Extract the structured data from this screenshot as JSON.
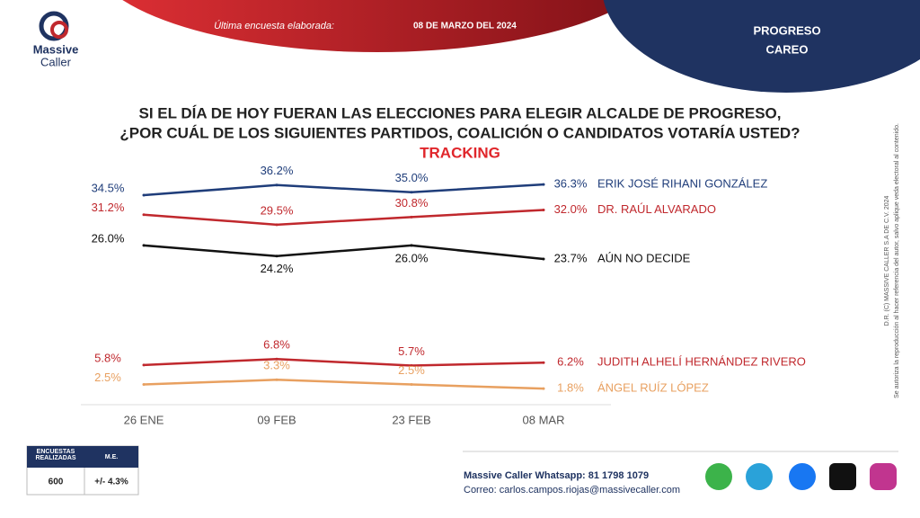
{
  "header": {
    "survey_label": "Última encuesta elaborada:",
    "survey_date": "08 DE MARZO DEL 2024",
    "place": "PROGRESO",
    "section": "CAREO"
  },
  "logo": {
    "line1": "Massive",
    "line2": "Caller"
  },
  "chart_data": {
    "type": "line",
    "title": [
      "SI EL DÍA DE HOY FUERAN LAS ELECCIONES PARA ELEGIR ALCALDE DE PROGRESO,",
      "¿POR CUÁL DE LOS SIGUIENTES PARTIDOS, COALICIÓN O CANDIDATOS VOTARÍA USTED?"
    ],
    "subtitle": "TRACKING",
    "categories": [
      "26 ENE",
      "09 FEB",
      "23 FEB",
      "08 MAR"
    ],
    "series": [
      {
        "name": "ERIK JOSÉ RIHANI GONZÁLEZ",
        "color": "#1f3d7a",
        "values": [
          34.5,
          36.2,
          35.0,
          36.3
        ],
        "value_labels": [
          "34.5%",
          "36.2%",
          "35.0%",
          "36.3%"
        ]
      },
      {
        "name": "DR. RAÚL ALVARADO",
        "color": "#c0282d",
        "values": [
          31.2,
          29.5,
          30.8,
          32.0
        ],
        "value_labels": [
          "31.2%",
          "29.5%",
          "30.8%",
          "32.0%"
        ]
      },
      {
        "name": "AÚN NO DECIDE",
        "color": "#111111",
        "values": [
          26.0,
          24.2,
          26.0,
          23.7
        ],
        "value_labels": [
          "26.0%",
          "24.2%",
          "26.0%",
          "23.7%"
        ]
      },
      {
        "name": "JUDITH ALHELÍ HERNÁNDEZ RIVERO",
        "color": "#c0282d",
        "values": [
          5.8,
          6.8,
          5.7,
          6.2
        ],
        "value_labels": [
          "5.8%",
          "6.8%",
          "5.7%",
          "6.2%"
        ]
      },
      {
        "name": "ÁNGEL RUÍZ LÓPEZ",
        "color": "#e8a060",
        "values": [
          2.5,
          3.3,
          2.5,
          1.8
        ],
        "value_labels": [
          "2.5%",
          "3.3%",
          "2.5%",
          "1.8%"
        ]
      }
    ]
  },
  "table": {
    "headers": [
      "ENCUESTAS REALIZADAS",
      "M.E."
    ],
    "row": [
      600,
      "+/- 4.3%"
    ]
  },
  "footer": {
    "whatsapp": "Massive Caller Whatsapp: 81 1798 1079",
    "email": "Correo: carlos.campos.riojas@massivecaller.com"
  },
  "side_note": [
    "D.R. (C) MASSIVE CALLER S.A DE C.V. 2024",
    "Se autoriza la reproducción al hacer referencia del autor, salvo aplique veda electoral al contenido."
  ]
}
